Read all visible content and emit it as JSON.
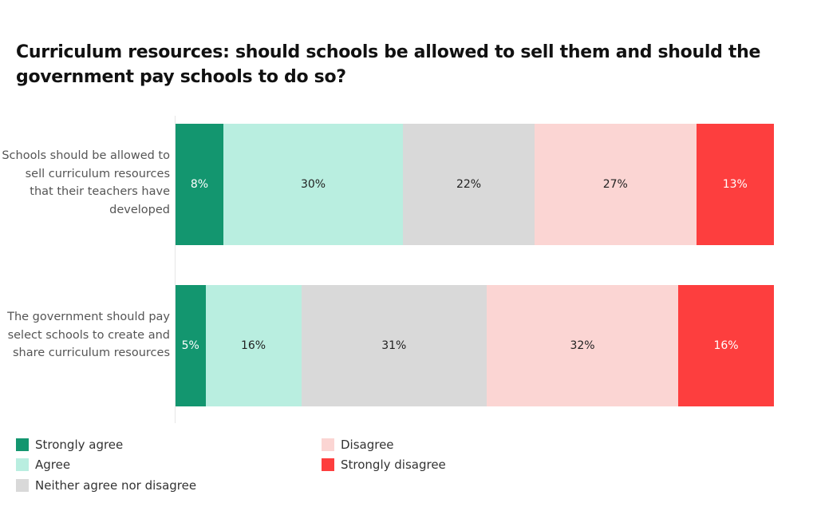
{
  "chart_data": {
    "type": "bar",
    "orientation": "horizontal",
    "stacked": true,
    "title": "Curriculum resources: should schools be allowed to sell them and should the government pay schools to do so?",
    "categories": [
      "Schools should be allowed to sell curriculum resources that their teachers have developed",
      "The government should pay select schools to create and share curriculum resources"
    ],
    "xlim": [
      0,
      100
    ],
    "grid": false,
    "legend_position": "bottom",
    "series": [
      {
        "name": "Strongly agree",
        "color": "#13966f",
        "text_color": "#ffffff",
        "values": [
          8,
          5
        ]
      },
      {
        "name": "Agree",
        "color": "#b9eee0",
        "text_color": "#222222",
        "values": [
          30,
          16
        ]
      },
      {
        "name": "Neither agree nor disagree",
        "color": "#d9d9d9",
        "text_color": "#222222",
        "values": [
          22,
          31
        ]
      },
      {
        "name": "Disagree",
        "color": "#fbd5d3",
        "text_color": "#222222",
        "values": [
          27,
          32
        ]
      },
      {
        "name": "Strongly disagree",
        "color": "#fd3e3e",
        "text_color": "#ffffff",
        "values": [
          13,
          16
        ]
      }
    ]
  }
}
